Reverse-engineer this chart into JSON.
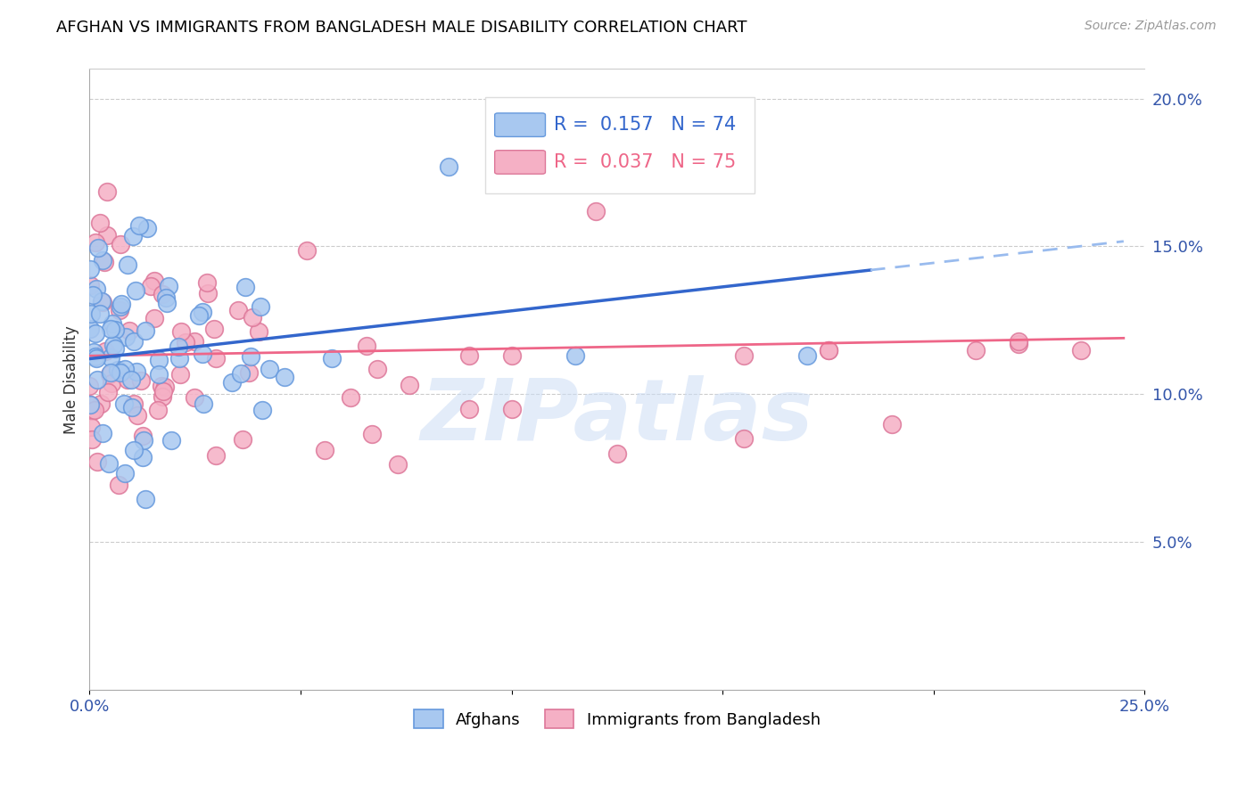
{
  "title": "AFGHAN VS IMMIGRANTS FROM BANGLADESH MALE DISABILITY CORRELATION CHART",
  "source": "Source: ZipAtlas.com",
  "ylabel": "Male Disability",
  "right_yticks": [
    "20.0%",
    "15.0%",
    "10.0%",
    "5.0%"
  ],
  "right_ytick_vals": [
    0.2,
    0.15,
    0.1,
    0.05
  ],
  "xlim": [
    0.0,
    0.25
  ],
  "ylim": [
    0.0,
    0.21
  ],
  "afghans_color": "#a8c8f0",
  "afghans_edge": "#6699dd",
  "bangladesh_color": "#f5b0c5",
  "bangladesh_edge": "#dd7799",
  "trendline_afghan_solid_color": "#3366cc",
  "trendline_afghan_dash_color": "#99bbee",
  "trendline_bangladesh_color": "#ee6688",
  "watermark": "ZIPatlas",
  "legend_r1_color": "#3366cc",
  "legend_r2_color": "#ee6688",
  "legend_r1": "R =  0.157   N = 74",
  "legend_r2": "R =  0.037   N = 75",
  "afghan_trend_x0": 0.0,
  "afghan_trend_y0": 0.112,
  "afghan_trend_x1": 0.185,
  "afghan_trend_y1": 0.142,
  "afghan_trend_xd0": 0.185,
  "afghan_trend_xd1": 0.245,
  "bangladesh_trend_x0": 0.0,
  "bangladesh_trend_y0": 0.113,
  "bangladesh_trend_x1": 0.245,
  "bangladesh_trend_y1": 0.119
}
